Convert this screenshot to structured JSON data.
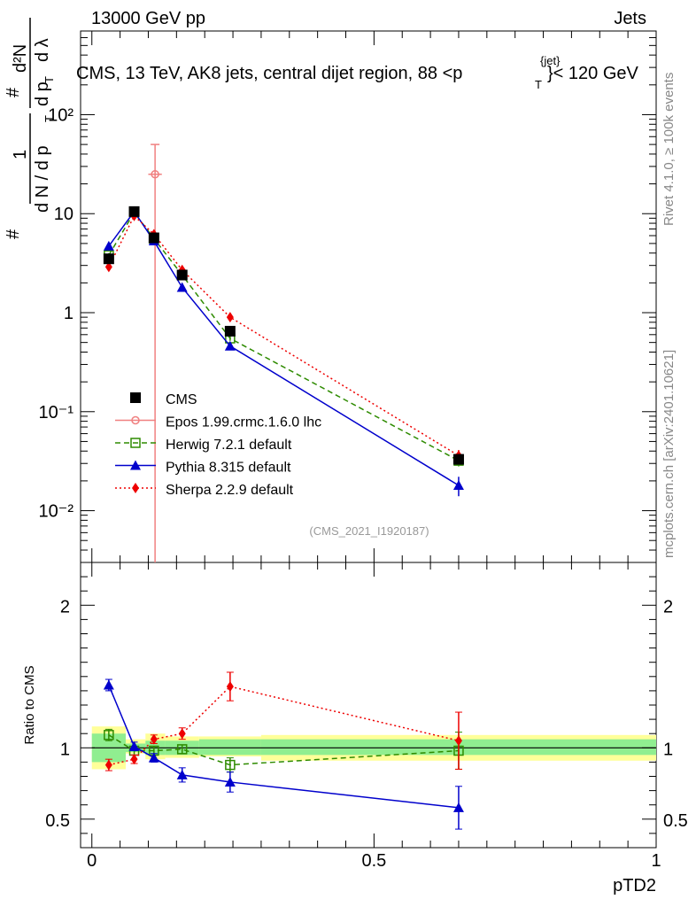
{
  "header": {
    "left": "13000 GeV pp",
    "right": "Jets"
  },
  "side_labels": {
    "top": "Rivet 4.1.0, ≥ 100k events",
    "bottom": "mcplots.cern.ch [arXiv:2401.10621]"
  },
  "watermark": "(CMS_2021_I1920187)",
  "chart_data": [
    {
      "type": "scatter",
      "panel": "main",
      "title": "CMS, 13 TeV, AK8 jets, central dijet region, 88 <p_T^{jet}> < 120 GeV",
      "title_parts": {
        "pre": "CMS, 13 TeV, AK8 jets, central dijet region, 88 <p",
        "sub": "T",
        "sup": "{jet}",
        "post": "}< 120 GeV"
      },
      "ylabel": "1/(dN/dpT) d²N/(dpT dλ)",
      "ylabel_parts": {
        "one": "1",
        "dn": "d N / d p",
        "t": "T",
        "d2n": "d²N",
        "dpdl": "d p",
        "dl": "d λ",
        "hash": "#"
      },
      "yscale": "log",
      "ylim": [
        0.003,
        700
      ],
      "xlim": [
        -0.02,
        1.0
      ],
      "yticks": [
        {
          "v": 0.01,
          "label": "10⁻²"
        },
        {
          "v": 0.1,
          "label": "10⁻¹"
        },
        {
          "v": 1,
          "label": "1"
        },
        {
          "v": 10,
          "label": "10"
        },
        {
          "v": 100,
          "label": "10²"
        }
      ],
      "series": [
        {
          "name": "CMS",
          "color": "#000000",
          "marker": "square-filled",
          "style": "none",
          "x": [
            0.03,
            0.075,
            0.11,
            0.16,
            0.245,
            0.65
          ],
          "y": [
            3.5,
            10.5,
            5.7,
            2.4,
            0.65,
            0.033
          ],
          "yerr": [
            0.2,
            0.3,
            0.2,
            0.1,
            0.03,
            0.003
          ]
        },
        {
          "name": "Epos 1.99.crmc.1.6.0 lhc",
          "color": "#f08080",
          "marker": "circle-open",
          "style": "solid",
          "x": [
            0.112
          ],
          "y": [
            25
          ],
          "ylo": [
            0.001
          ],
          "yhi": [
            50
          ],
          "xerr": [
            0.012
          ]
        },
        {
          "name": "Herwig 7.2.1 default",
          "color": "#2e8b00",
          "marker": "square-open",
          "style": "dashed",
          "x": [
            0.03,
            0.075,
            0.11,
            0.16,
            0.245,
            0.65
          ],
          "y": [
            3.8,
            10.3,
            5.6,
            2.4,
            0.55,
            0.032
          ],
          "yerr": [
            0.2,
            0.3,
            0.2,
            0.1,
            0.03,
            0.004
          ]
        },
        {
          "name": "Pythia 8.315 default",
          "color": "#0000cc",
          "marker": "triangle-filled",
          "style": "solid",
          "x": [
            0.03,
            0.075,
            0.11,
            0.16,
            0.245,
            0.65
          ],
          "y": [
            4.7,
            10.5,
            5.3,
            1.8,
            0.46,
            0.018
          ],
          "yerr": [
            0.3,
            0.3,
            0.2,
            0.1,
            0.03,
            0.004
          ]
        },
        {
          "name": "Sherpa 2.2.9 default",
          "color": "#ee0000",
          "marker": "diamond-filled",
          "style": "dotted",
          "x": [
            0.03,
            0.075,
            0.11,
            0.16,
            0.245,
            0.65
          ],
          "y": [
            2.9,
            9.5,
            6.2,
            2.7,
            0.9,
            0.036
          ],
          "yerr": [
            0.2,
            0.3,
            0.2,
            0.1,
            0.04,
            0.005
          ]
        }
      ]
    },
    {
      "type": "scatter",
      "panel": "ratio",
      "ylabel": "Ratio to CMS",
      "xlabel": "pTD2",
      "xlim": [
        -0.02,
        1.0
      ],
      "ylim": [
        0.3,
        2.3
      ],
      "xticks": [
        {
          "v": 0,
          "label": "0"
        },
        {
          "v": 0.5,
          "label": "0.5"
        },
        {
          "v": 1,
          "label": "1"
        }
      ],
      "yticks": [
        {
          "v": 0.5,
          "label": "0.5"
        },
        {
          "v": 1,
          "label": "1"
        },
        {
          "v": 2,
          "label": "2"
        }
      ],
      "bands": {
        "edges": [
          0.0,
          0.06,
          0.095,
          0.13,
          0.19,
          0.3,
          1.0
        ],
        "green_lo": [
          0.9,
          0.97,
          0.95,
          0.95,
          0.95,
          0.95
        ],
        "green_hi": [
          1.1,
          1.03,
          1.05,
          1.05,
          1.06,
          1.06
        ],
        "yellow_lo": [
          0.85,
          0.96,
          0.92,
          0.93,
          0.94,
          0.91
        ],
        "yellow_hi": [
          1.15,
          1.06,
          1.1,
          1.08,
          1.08,
          1.09
        ]
      },
      "series": [
        {
          "name": "Herwig 7.2.1 default",
          "color": "#2e8b00",
          "marker": "square-open",
          "style": "dashed",
          "x": [
            0.03,
            0.075,
            0.11,
            0.16,
            0.245,
            0.65
          ],
          "y": [
            1.09,
            0.98,
            0.98,
            0.99,
            0.88,
            0.98
          ],
          "yerr": [
            0.04,
            0.03,
            0.03,
            0.03,
            0.05,
            0.13
          ]
        },
        {
          "name": "Pythia 8.315 default",
          "color": "#0000cc",
          "marker": "triangle-filled",
          "style": "solid",
          "x": [
            0.03,
            0.075,
            0.11,
            0.16,
            0.245,
            0.65
          ],
          "y": [
            1.44,
            1.01,
            0.93,
            0.81,
            0.76,
            0.58
          ],
          "yerr": [
            0.04,
            0.03,
            0.03,
            0.05,
            0.07,
            0.15
          ]
        },
        {
          "name": "Sherpa 2.2.9 default",
          "color": "#ee0000",
          "marker": "diamond-filled",
          "style": "dotted",
          "x": [
            0.03,
            0.075,
            0.11,
            0.16,
            0.245,
            0.65
          ],
          "y": [
            0.88,
            0.92,
            1.06,
            1.1,
            1.43,
            1.05
          ],
          "yerr": [
            0.04,
            0.03,
            0.03,
            0.04,
            0.1,
            0.2
          ]
        }
      ]
    }
  ]
}
